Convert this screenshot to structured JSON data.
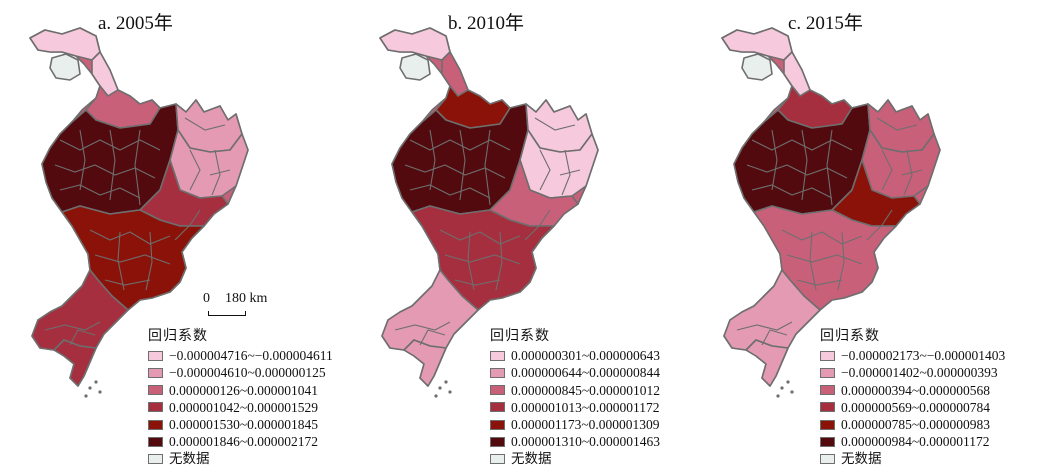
{
  "panels": [
    {
      "title": "a. 2005年",
      "legend": {
        "title": "回归系数",
        "items": [
          {
            "label": "−0.000004716~−0.000004611",
            "color": "#f7c9dc"
          },
          {
            "label": "−0.000004610~0.000000125",
            "color": "#e59ab4"
          },
          {
            "label": "0.000000126~0.000001041",
            "color": "#c9607a"
          },
          {
            "label": "0.000001042~0.000001529",
            "color": "#a52f3e"
          },
          {
            "label": "0.000001530~0.000001845",
            "color": "#8a1208"
          },
          {
            "label": "0.000001846~0.000002172",
            "color": "#520a0e"
          },
          {
            "label": "无数据",
            "color": "#e9efed"
          }
        ]
      },
      "scalebar": {
        "zero": "0",
        "distance": "180 km"
      }
    },
    {
      "title": "b. 2010年",
      "legend": {
        "title": "回归系数",
        "items": [
          {
            "label": "0.000000301~0.000000643",
            "color": "#f7c9dc"
          },
          {
            "label": "0.000000644~0.000000844",
            "color": "#e59ab4"
          },
          {
            "label": "0.000000845~0.000001012",
            "color": "#c9607a"
          },
          {
            "label": "0.000001013~0.000001172",
            "color": "#a52f3e"
          },
          {
            "label": "0.000001173~0.000001309",
            "color": "#8a1208"
          },
          {
            "label": "0.000001310~0.000001463",
            "color": "#520a0e"
          },
          {
            "label": "无数据",
            "color": "#e9efed"
          }
        ]
      }
    },
    {
      "title": "c. 2015年",
      "legend": {
        "title": "回归系数",
        "items": [
          {
            "label": "−0.000002173~−0.000001403",
            "color": "#f7c9dc"
          },
          {
            "label": "−0.000001402~0.000000393",
            "color": "#e59ab4"
          },
          {
            "label": "0.000000394~0.000000568",
            "color": "#c9607a"
          },
          {
            "label": "0.000000569~0.000000784",
            "color": "#a52f3e"
          },
          {
            "label": "0.000000785~0.000000983",
            "color": "#8a1208"
          },
          {
            "label": "0.000000984~0.000001172",
            "color": "#520a0e"
          },
          {
            "label": "无数据",
            "color": "#e9efed"
          }
        ]
      }
    }
  ],
  "map_style": {
    "boundary_color": "#6e6e6e"
  }
}
